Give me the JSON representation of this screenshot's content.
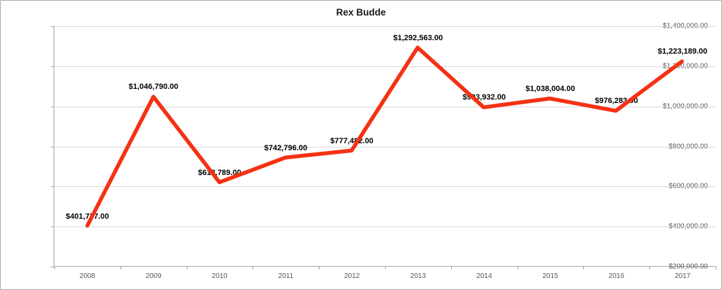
{
  "window": {
    "background": "#ffffff",
    "border_color": "#ababab"
  },
  "chart_data": {
    "type": "line",
    "title": "Rex Budde",
    "categories": [
      "2008",
      "2009",
      "2010",
      "2011",
      "2012",
      "2013",
      "2014",
      "2015",
      "2016",
      "2017"
    ],
    "series": [
      {
        "name": "Rex Budde",
        "color": "#f53114",
        "values": [
          401737,
          1046790,
          618789,
          742796,
          777482,
          1292563,
          993932,
          1038004,
          976283,
          1223189
        ]
      }
    ],
    "data_labels": [
      "$401,737.00",
      "$1,046,790.00",
      "$618,789.00",
      "$742,796.00",
      "$777,482.00",
      "$1,292,563.00",
      "$993,932.00",
      "$1,038,004.00",
      "$976,283.00",
      "$1,223,189.00"
    ],
    "xlabel": "",
    "ylabel": "",
    "y_axis": {
      "min": 200000,
      "max": 1400000,
      "step": 200000,
      "tick_labels_top_to_bottom": [
        "$1,400,000.00",
        "$1,200,000.00",
        "$1,000,000.00",
        "$800,000.00",
        "$600,000.00",
        "$400,000.00",
        "$200,000.00"
      ]
    },
    "grid": true,
    "legend": false
  },
  "colors": {
    "line": "#f53114",
    "gridline": "#d9d9d9",
    "axis": "#a6a6a6",
    "tick_label": "#595959",
    "data_label": "#000000",
    "title": "#1a1a1a"
  }
}
